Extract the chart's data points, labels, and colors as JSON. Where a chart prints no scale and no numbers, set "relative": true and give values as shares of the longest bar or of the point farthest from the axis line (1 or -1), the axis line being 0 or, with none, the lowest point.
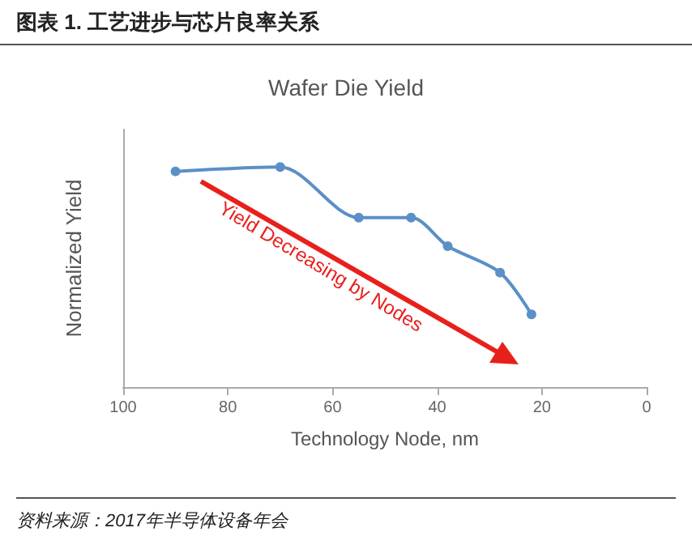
{
  "chart_data": {
    "type": "line",
    "title": "图表 1. 工艺进步与芯片良率关系",
    "subtitle": "Wafer Die Yield",
    "xlabel": "Technology Node, nm",
    "ylabel": "Normalized Yield",
    "relative": true,
    "x": [
      90,
      70,
      55,
      45,
      38,
      28,
      22
    ],
    "series": [
      {
        "color": "#5b8fc7",
        "values": [
          0.98,
          1,
          0.77,
          0.77,
          0.64,
          0.52,
          0.33
        ]
      }
    ],
    "xlim": [
      100,
      0
    ],
    "xticks": [
      100,
      80,
      60,
      40,
      20,
      0
    ],
    "marker": "circle",
    "line_style": "solid",
    "annotations": [
      "Yield Decreasing by Nodes",
      "资料来源：2017年半导体设备年会"
    ]
  }
}
